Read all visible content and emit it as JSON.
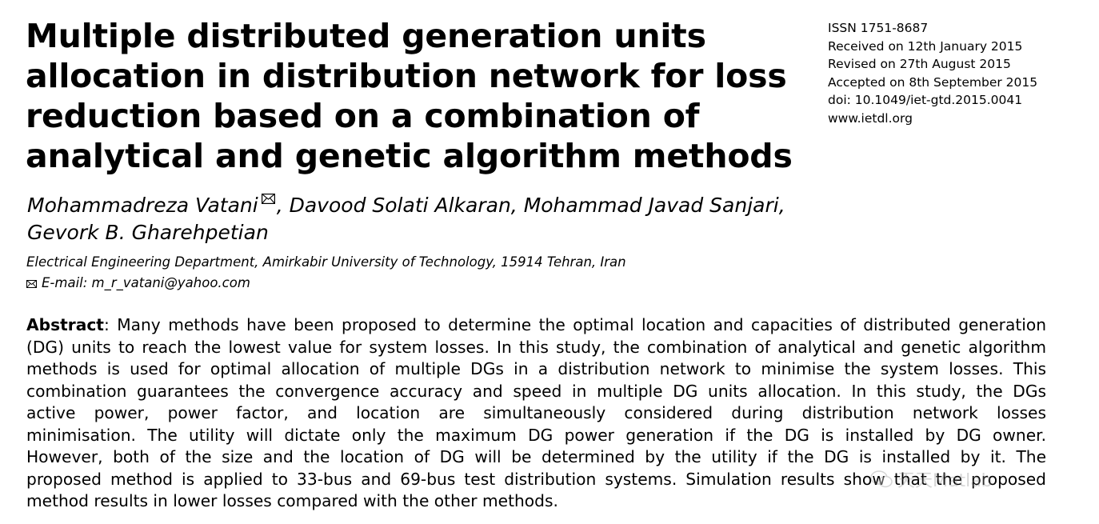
{
  "title_lines": [
    "Multiple distributed generation units",
    "allocation in distribution network for loss",
    "reduction based on a combination of",
    "analytical and genetic algorithm methods"
  ],
  "meta": {
    "issn": "ISSN 1751-8687",
    "received": "Received on 12th January 2015",
    "revised": "Revised on 27th August 2015",
    "accepted": "Accepted on 8th September 2015",
    "doi": "doi: 10.1049/iet-gtd.2015.0041",
    "website": "www.ietdl.org"
  },
  "authors": {
    "first": "Mohammadreza Vatani",
    "rest_line1": ", Davood Solati Alkaran, Mohammad Javad Sanjari,",
    "line2": "Gevork B. Gharehpetian"
  },
  "affiliation": "Electrical Engineering Department, Amirkabir University of Technology, 15914 Tehran, Iran",
  "email": "E-mail: m_r_vatani@yahoo.com",
  "abstract": {
    "label": "Abstract",
    "first_line_rest": ": Many methods have been proposed to determine the optimal location and capacities of distributed generation",
    "lines": [
      "(DG) units to reach the lowest value for system losses. In this study, the combination of analytical and genetic algorithm",
      "methods is used for optimal allocation of multiple DGs in a distribution network to minimise the system losses. This",
      "combination guarantees the convergence accuracy and speed in multiple DG units allocation. In this study, the DGs",
      "active power, power factor, and location are simultaneously considered during distribution network losses",
      "minimisation. The utility will dictate only the maximum DG power generation if the DG is installed by DG owner.",
      "However, both of the size and the location of DG will be determined by the utility if the DG is installed by it. The",
      "proposed method is applied to 33-bus and 69-bus test distribution systems. Simulation results show that the proposed",
      "method results in lower losses compared with the other methods."
    ]
  },
  "watermark": "天天Matlab",
  "icons": {
    "corresponding_author": "envelope-icon",
    "watermark": "wechat-icon"
  }
}
